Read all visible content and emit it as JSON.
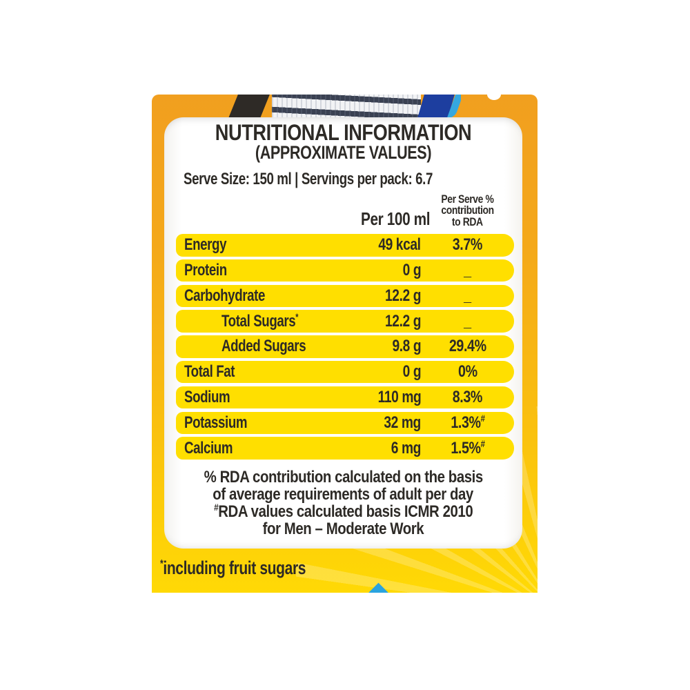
{
  "label": {
    "title_line1": "NUTRITIONAL INFORMATION",
    "title_line2": "(APPROXIMATE VALUES)",
    "serve_info": "Serve Size: 150 ml | Servings per pack: 6.7",
    "columns": {
      "per_100ml": "Per 100 ml",
      "rda_line1": "Per Serve %",
      "rda_line2": "contribution",
      "rda_line3": "to RDA"
    },
    "rows": [
      {
        "name": "Energy",
        "name_sup": "",
        "indent": false,
        "value": "49 kcal",
        "rda": "3.7%",
        "rda_sup": ""
      },
      {
        "name": "Protein",
        "name_sup": "",
        "indent": false,
        "value": "0 g",
        "rda": "_",
        "rda_sup": ""
      },
      {
        "name": "Carbohydrate",
        "name_sup": "",
        "indent": false,
        "value": "12.2 g",
        "rda": "_",
        "rda_sup": ""
      },
      {
        "name": "Total Sugars",
        "name_sup": "*",
        "indent": true,
        "value": "12.2 g",
        "rda": "_",
        "rda_sup": ""
      },
      {
        "name": "Added Sugars",
        "name_sup": "",
        "indent": true,
        "value": "9.8 g",
        "rda": "29.4%",
        "rda_sup": ""
      },
      {
        "name": "Total Fat",
        "name_sup": "",
        "indent": false,
        "value": "0 g",
        "rda": "0%",
        "rda_sup": ""
      },
      {
        "name": "Sodium",
        "name_sup": "",
        "indent": false,
        "value": "110 mg",
        "rda": "8.3%",
        "rda_sup": ""
      },
      {
        "name": "Potassium",
        "name_sup": "",
        "indent": false,
        "value": "32 mg",
        "rda": "1.3%",
        "rda_sup": "#"
      },
      {
        "name": "Calcium",
        "name_sup": "",
        "indent": false,
        "value": "6 mg",
        "rda": "1.5%",
        "rda_sup": "#"
      }
    ],
    "footnote": {
      "line1": "% RDA contribution calculated on the basis",
      "line2": "of average requirements of adult per day",
      "line3_sup": "#",
      "line3": "RDA values calculated basis ICMR 2010",
      "line4": "for Men – Moderate  Work"
    },
    "bottom_note": {
      "sup": "*",
      "text": "including fruit sugars"
    },
    "colors": {
      "package_orange": "#F19F1F",
      "package_gold": "#FFD905",
      "row_yellow": "#FFDF00",
      "text_dark": "#2D2A26",
      "accent_blue": "#2AA3DF",
      "photo_navy": "#1D3E9F",
      "photo_lightblue": "#35A8E0"
    }
  }
}
